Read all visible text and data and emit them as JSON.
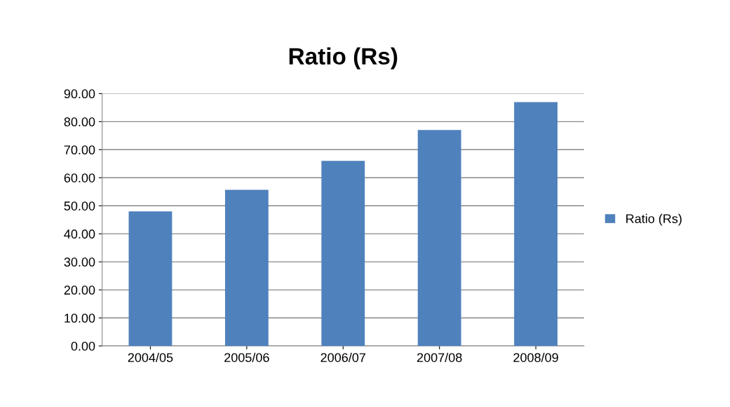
{
  "chart_data": {
    "type": "bar",
    "title": "Ratio (Rs)",
    "categories": [
      "2004/05",
      "2005/06",
      "2006/07",
      "2007/08",
      "2008/09"
    ],
    "series": [
      {
        "name": "Ratio (Rs)",
        "color": "#4f81bd",
        "values": [
          48,
          55.7,
          66,
          77,
          87
        ]
      }
    ],
    "ylim": [
      0,
      90
    ],
    "yticks": [
      {
        "value": 0,
        "label": "0.00"
      },
      {
        "value": 10,
        "label": "10.00"
      },
      {
        "value": 20,
        "label": "20.00"
      },
      {
        "value": 30,
        "label": "30.00"
      },
      {
        "value": 40,
        "label": "40.00"
      },
      {
        "value": 50,
        "label": "50.00"
      },
      {
        "value": 60,
        "label": "60.00"
      },
      {
        "value": 70,
        "label": "70.00"
      },
      {
        "value": 80,
        "label": "80.00"
      },
      {
        "value": 90,
        "label": "90.00"
      }
    ],
    "grid": "y",
    "legend": "right"
  }
}
